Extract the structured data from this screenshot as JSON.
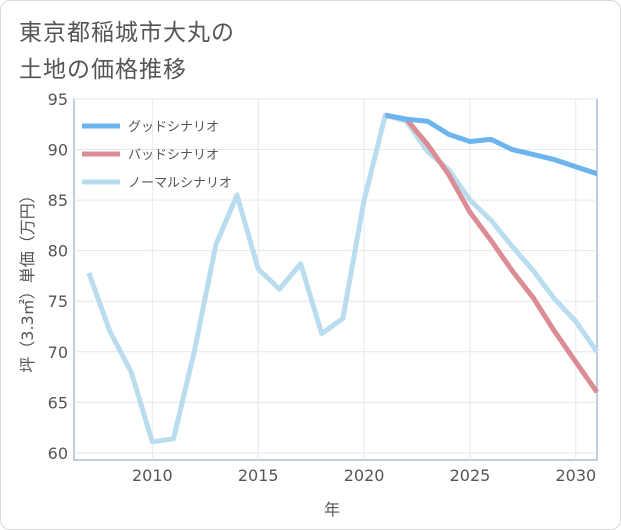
{
  "title_lines": [
    "東京都稲城市大丸の",
    "土地の価格推移"
  ],
  "chart_data": {
    "type": "line",
    "xlabel": "年",
    "ylabel": "坪（3.3㎡）単価（万円）",
    "xlim": [
      2006.3,
      2031
    ],
    "ylim": [
      59.3,
      95
    ],
    "xticks": [
      2010,
      2015,
      2020,
      2025,
      2030
    ],
    "yticks": [
      60,
      65,
      70,
      75,
      80,
      85,
      90,
      95
    ],
    "grid": true,
    "legend_position": "top-left",
    "series": [
      {
        "name": "グッドシナリオ",
        "color": "#6cb4ee",
        "x": [
          2021,
          2022,
          2023,
          2024,
          2025,
          2026,
          2027,
          2028,
          2029,
          2030,
          2031
        ],
        "y": [
          93.4,
          93.0,
          92.8,
          91.5,
          90.8,
          91.0,
          90.0,
          89.5,
          89.0,
          88.3,
          87.6
        ]
      },
      {
        "name": "バッドシナリオ",
        "color": "#dc8c94",
        "x": [
          2021,
          2022,
          2023,
          2024,
          2025,
          2026,
          2027,
          2028,
          2029,
          2030,
          2031
        ],
        "y": [
          93.4,
          93.0,
          90.5,
          87.5,
          83.8,
          81.0,
          78.0,
          75.3,
          72.0,
          69.0,
          66.0
        ]
      },
      {
        "name": "ノーマルシナリオ",
        "color": "#b9dcee",
        "x": [
          2007,
          2008,
          2009,
          2010,
          2011,
          2012,
          2013,
          2014,
          2015,
          2016,
          2017,
          2018,
          2019,
          2020,
          2021,
          2022,
          2023,
          2024,
          2025,
          2026,
          2027,
          2028,
          2029,
          2030,
          2031
        ],
        "y": [
          77.8,
          72.0,
          68.0,
          61.1,
          61.4,
          70.2,
          80.6,
          85.5,
          78.2,
          76.2,
          78.7,
          71.8,
          73.3,
          85.0,
          93.4,
          92.8,
          89.8,
          88.0,
          85.0,
          83.0,
          80.4,
          78.0,
          75.2,
          73.0,
          70.0
        ]
      }
    ]
  }
}
